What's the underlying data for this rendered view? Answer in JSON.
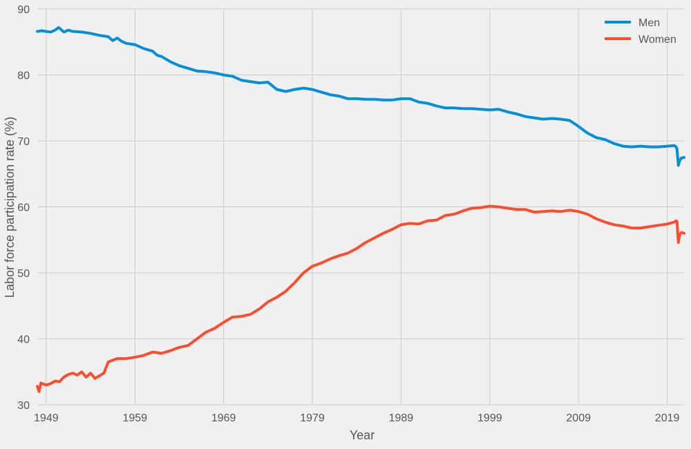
{
  "chart_data": {
    "type": "line",
    "title": "",
    "xlabel": "Year",
    "ylabel": "Labor force participation rate (%)",
    "xlim": [
      1948.0,
      2020.9
    ],
    "ylim": [
      30,
      90
    ],
    "xticks": [
      1949,
      1959,
      1969,
      1979,
      1989,
      1999,
      2009,
      2019
    ],
    "yticks": [
      30,
      40,
      50,
      60,
      70,
      80,
      90
    ],
    "grid": true,
    "legend_position": "top-right",
    "series": [
      {
        "name": "Men",
        "color": "#008fd5",
        "x": [
          1948.0,
          1948.5,
          1949.0,
          1949.5,
          1950.0,
          1950.4,
          1951.0,
          1951.5,
          1952.0,
          1953.0,
          1954.0,
          1955.0,
          1956.0,
          1956.5,
          1957.0,
          1957.5,
          1958.0,
          1959.0,
          1960.0,
          1961.0,
          1961.5,
          1962.0,
          1963.0,
          1964.0,
          1965.0,
          1966.0,
          1967.0,
          1968.0,
          1969.0,
          1970.0,
          1971.0,
          1972.0,
          1973.0,
          1974.0,
          1975.0,
          1976.0,
          1977.0,
          1978.0,
          1979.0,
          1980.0,
          1981.0,
          1982.0,
          1983.0,
          1984.0,
          1985.0,
          1986.0,
          1987.0,
          1988.0,
          1989.0,
          1990.0,
          1991.0,
          1992.0,
          1993.0,
          1994.0,
          1995.0,
          1996.0,
          1997.0,
          1998.0,
          1999.0,
          2000.0,
          2001.0,
          2002.0,
          2003.0,
          2004.0,
          2005.0,
          2006.0,
          2007.0,
          2008.0,
          2009.0,
          2010.0,
          2011.0,
          2012.0,
          2013.0,
          2014.0,
          2015.0,
          2016.0,
          2017.0,
          2018.0,
          2019.0,
          2019.8,
          2020.0,
          2020.1,
          2020.25,
          2020.4,
          2020.6,
          2020.9
        ],
        "values": [
          86.6,
          86.7,
          86.6,
          86.5,
          86.8,
          87.2,
          86.5,
          86.8,
          86.6,
          86.5,
          86.3,
          86.0,
          85.8,
          85.2,
          85.6,
          85.1,
          84.8,
          84.6,
          84.0,
          83.6,
          83.0,
          82.8,
          82.0,
          81.4,
          81.0,
          80.6,
          80.5,
          80.3,
          80.0,
          79.8,
          79.2,
          79.0,
          78.8,
          78.9,
          77.8,
          77.5,
          77.8,
          78.0,
          77.8,
          77.4,
          77.0,
          76.8,
          76.4,
          76.4,
          76.3,
          76.3,
          76.2,
          76.2,
          76.4,
          76.4,
          75.9,
          75.7,
          75.3,
          75.0,
          75.0,
          74.9,
          74.9,
          74.8,
          74.7,
          74.8,
          74.4,
          74.1,
          73.7,
          73.5,
          73.3,
          73.4,
          73.3,
          73.1,
          72.2,
          71.2,
          70.5,
          70.2,
          69.6,
          69.2,
          69.1,
          69.2,
          69.1,
          69.1,
          69.2,
          69.3,
          69.1,
          68.8,
          66.3,
          67.0,
          67.4,
          67.5
        ]
      },
      {
        "name": "Women",
        "color": "#fc4f30",
        "x": [
          1948.0,
          1948.2,
          1948.4,
          1949.0,
          1949.5,
          1950.0,
          1950.5,
          1951.0,
          1951.5,
          1952.0,
          1952.5,
          1953.0,
          1953.5,
          1954.0,
          1954.5,
          1955.0,
          1955.5,
          1956.0,
          1957.0,
          1958.0,
          1959.0,
          1960.0,
          1961.0,
          1962.0,
          1963.0,
          1964.0,
          1965.0,
          1966.0,
          1967.0,
          1968.0,
          1969.0,
          1970.0,
          1971.0,
          1972.0,
          1973.0,
          1974.0,
          1975.0,
          1976.0,
          1977.0,
          1978.0,
          1979.0,
          1980.0,
          1981.0,
          1982.0,
          1983.0,
          1984.0,
          1985.0,
          1986.0,
          1987.0,
          1988.0,
          1989.0,
          1990.0,
          1991.0,
          1992.0,
          1993.0,
          1994.0,
          1995.0,
          1996.0,
          1997.0,
          1998.0,
          1999.0,
          2000.0,
          2001.0,
          2002.0,
          2003.0,
          2004.0,
          2005.0,
          2006.0,
          2007.0,
          2008.0,
          2009.0,
          2010.0,
          2011.0,
          2012.0,
          2013.0,
          2014.0,
          2015.0,
          2016.0,
          2017.0,
          2018.0,
          2019.0,
          2019.8,
          2020.0,
          2020.1,
          2020.25,
          2020.4,
          2020.6,
          2020.9
        ],
        "values": [
          32.8,
          32.0,
          33.3,
          33.0,
          33.2,
          33.6,
          33.5,
          34.2,
          34.6,
          34.8,
          34.5,
          35.0,
          34.2,
          34.8,
          34.0,
          34.4,
          34.8,
          36.5,
          37.0,
          37.0,
          37.2,
          37.5,
          38.0,
          37.8,
          38.2,
          38.7,
          39.0,
          40.0,
          41.0,
          41.6,
          42.5,
          43.3,
          43.4,
          43.7,
          44.5,
          45.6,
          46.3,
          47.2,
          48.5,
          50.0,
          51.0,
          51.5,
          52.1,
          52.6,
          53.0,
          53.7,
          54.6,
          55.3,
          56.0,
          56.6,
          57.3,
          57.5,
          57.4,
          57.9,
          58.0,
          58.7,
          58.9,
          59.4,
          59.8,
          59.9,
          60.1,
          60.0,
          59.8,
          59.6,
          59.6,
          59.2,
          59.3,
          59.4,
          59.3,
          59.5,
          59.3,
          58.9,
          58.2,
          57.7,
          57.3,
          57.1,
          56.8,
          56.8,
          57.0,
          57.2,
          57.4,
          57.7,
          57.9,
          57.8,
          54.6,
          55.8,
          56.1,
          56.0
        ]
      }
    ]
  }
}
